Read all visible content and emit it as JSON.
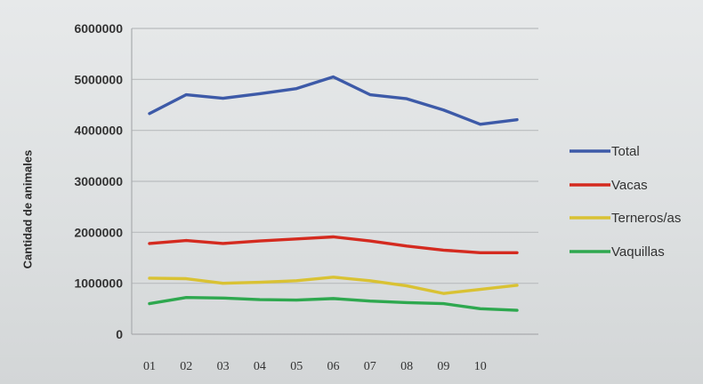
{
  "chart_data": {
    "type": "line",
    "categories": [
      "01",
      "02",
      "03",
      "04",
      "05",
      "06",
      "07",
      "08",
      "09",
      "10",
      ""
    ],
    "ylabel": "Cantidad de animales",
    "xlabel": "",
    "ylim": [
      0,
      6000000
    ],
    "yticks": [
      "6000000",
      "5000000",
      "4000000",
      "3000000",
      "2000000",
      "1000000",
      "0"
    ],
    "grid": "horizontal",
    "legend_position": "right",
    "series": [
      {
        "name": "Total",
        "color": "#3d5aa8",
        "values": [
          4330000,
          4700000,
          4630000,
          4720000,
          4820000,
          5050000,
          4700000,
          4620000,
          4400000,
          4120000,
          4210000
        ]
      },
      {
        "name": "Vacas",
        "color": "#d42a1f",
        "values": [
          1780000,
          1840000,
          1780000,
          1830000,
          1870000,
          1910000,
          1830000,
          1730000,
          1650000,
          1600000,
          1600000
        ]
      },
      {
        "name": "Terneros/as",
        "color": "#d9c233",
        "values": [
          1100000,
          1090000,
          1000000,
          1020000,
          1050000,
          1120000,
          1050000,
          950000,
          800000,
          880000,
          960000
        ]
      },
      {
        "name": "Vaquillas",
        "color": "#2ea84f",
        "values": [
          600000,
          720000,
          710000,
          680000,
          670000,
          700000,
          650000,
          620000,
          600000,
          500000,
          470000
        ]
      }
    ]
  }
}
